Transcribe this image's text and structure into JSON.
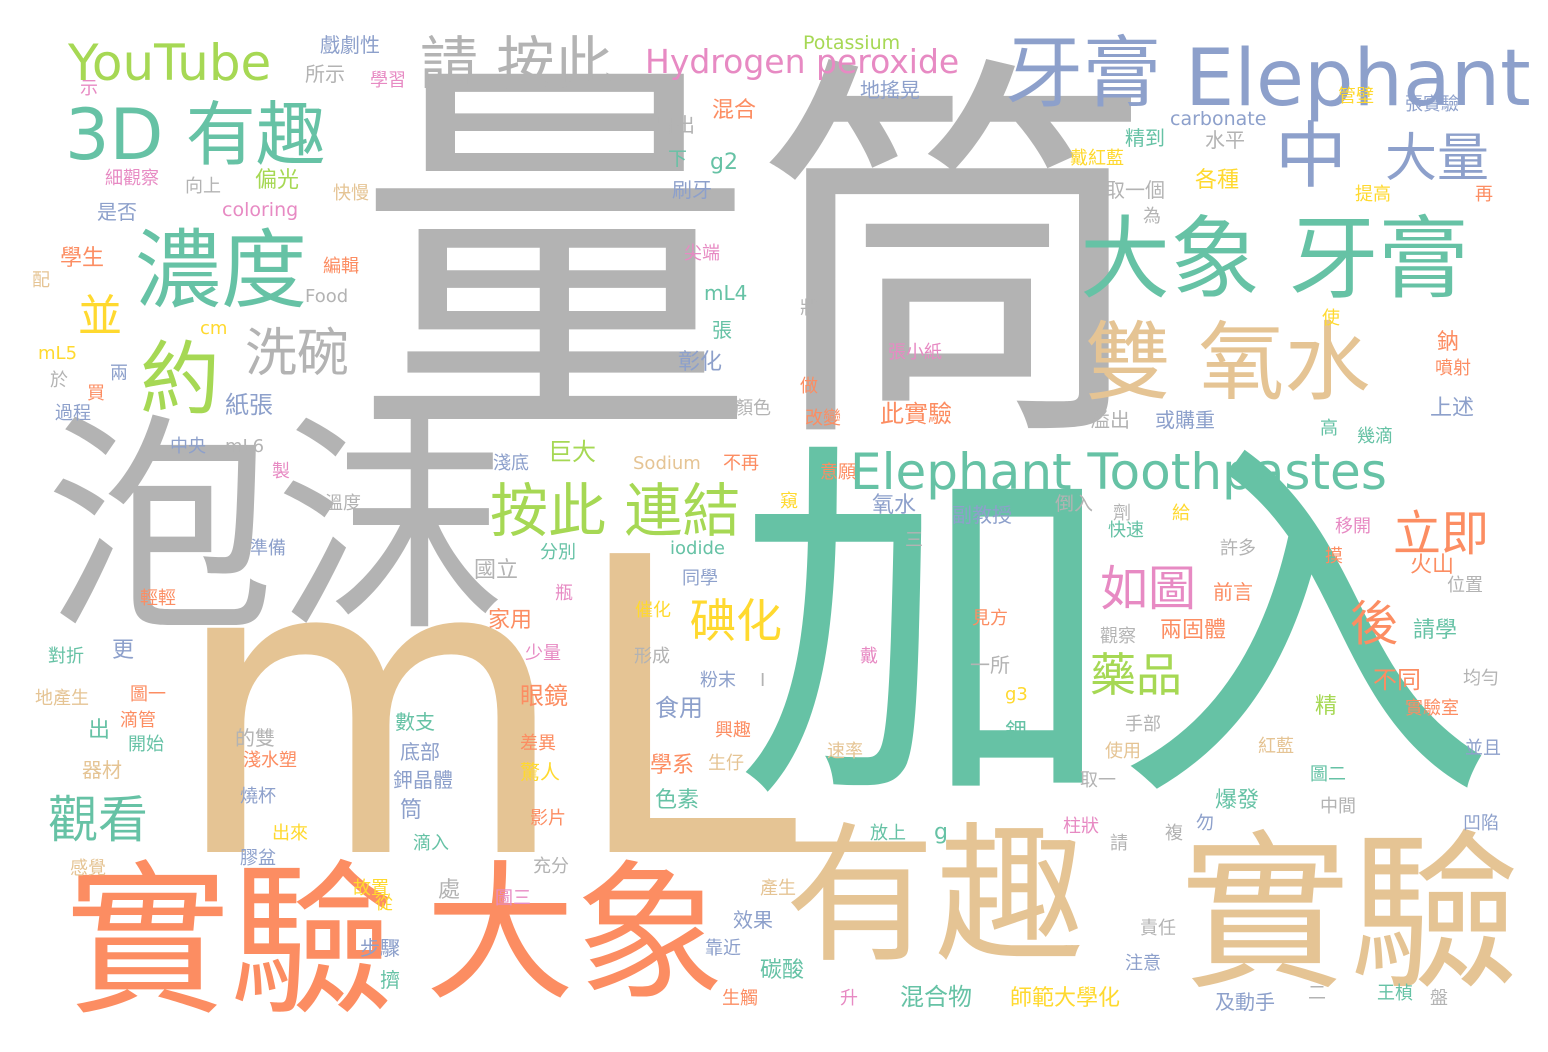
{
  "palette": {
    "teal": "#66c2a5",
    "orange": "#fc8d62",
    "blue": "#8da0cb",
    "pink": "#e78ac3",
    "green": "#a6d854",
    "yellow": "#ffd92f",
    "tan": "#e5c494",
    "gray": "#b3b3b3"
  },
  "words": {
    "liangtong": "量筒",
    "jiaru": "加入",
    "ml": "mL",
    "paomo": "泡沫",
    "shiyan_tan": "實驗",
    "shiyan_orange": "實驗",
    "youqu_tan": "有趣",
    "daxiang_orange": "大象",
    "elephant": "Elephant",
    "yagao1": "牙膏",
    "daxiang_yagao": "大象 牙膏",
    "shuangyangshui": "雙 氧水",
    "nongdu": "濃度",
    "youqu_3d": "3D 有趣",
    "youtube": "YouTube",
    "qing_anci": "請 按此",
    "hydrogen": "Hydrogen peroxide",
    "zhong": "中",
    "daliang": "大量",
    "yue": "約",
    "bing": "並",
    "xiwan": "洗碗",
    "elephant_tooth": "Elephant Toothpastes",
    "anci_lianjie": "按此 連結",
    "liji": "立即",
    "ruitu": "如圖",
    "hou": "後",
    "dianhua": "碘化",
    "yaopin": "藥品",
    "guankan": "觀看",
    "potassium": "Potassium",
    "carbonate": "carbonate",
    "xiju": "戲劇性",
    "suoshi": "所示",
    "xuexi": "學習",
    "shi": "示",
    "maochu": "冒出",
    "hunhe": "混合",
    "dizhuhuang": "地搖晃",
    "guanbi": "管壁",
    "zhangshiyan": "張實驗",
    "shuiping": "水平",
    "jingdao": "精到",
    "xia": "下",
    "g2": "g2",
    "xiguancha": "細觀察",
    "xiangshang": "向上",
    "pianguang": "偏光",
    "kuaiman": "快慢",
    "shuaya": "刷牙",
    "dai_hong": "戴紅藍",
    "gezhong": "各種",
    "quyige": "取一個",
    "tigao": "提高",
    "zai": "再",
    "wei": "為",
    "shifou": "是否",
    "coloring": "coloring",
    "xuesheng": "學生",
    "bianji": "編輯",
    "jianduan": "尖端",
    "pei": "配",
    "food": "Food",
    "ml4": "mL4",
    "zhuang": "狀",
    "shi2": "使",
    "cm": "cm",
    "zhang": "張",
    "zhangxiaozhi": "張小紙",
    "na": "鈉",
    "ml5": "mL5",
    "zhanghua": "彰化",
    "penshe": "噴射",
    "yu": "於",
    "liang": "兩",
    "mai": "買",
    "zhizhang": "紙張",
    "zuo": "做",
    "guocheng": "過程",
    "yanse": "顏色",
    "cishiyan": "此實驗",
    "gaibian": "改變",
    "yiliu": "溢出",
    "huogouzhong": "或購重",
    "shangshu": "上述",
    "gao": "高",
    "jidi": "幾滴",
    "zhongyang": "中央",
    "ml6": "mL6",
    "qiandi": "淺底",
    "juda": "巨大",
    "sodium": "Sodium",
    "buzai": "不再",
    "yiyuan": "意願",
    "zhi": "製",
    "wendu": "溫度",
    "chuang": "窺",
    "yangshui": "氧水",
    "fujiaoshou": "副教授",
    "daoru": "倒入",
    "ji": "劑",
    "gei": "給",
    "kuaisu": "快速",
    "yikai": "移開",
    "zhunbei": "準備",
    "fenbie": "分別",
    "iodide": "iodide",
    "san": "三",
    "xuduo": "許多",
    "mo": "摸",
    "huoshan": "火山",
    "guoli": "國立",
    "tongxue": "同學",
    "qianyan": "前言",
    "weizhi": "位置",
    "qingqing": "輕輕",
    "ping": "瓶",
    "cuihua": "催化",
    "jianfang": "見方",
    "liangguti": "兩固體",
    "qingxue": "請學",
    "jiayong": "家用",
    "guancha": "觀察",
    "duizhe": "對折",
    "geng": "更",
    "shaoliang": "少量",
    "xingcheng": "形成",
    "dai": "戴",
    "yisuo": "一所",
    "diaochan": "地產生",
    "tuyi": "圖一",
    "chu": "出",
    "fenmo": "粉末",
    "i": "I",
    "budong": "不同",
    "junyun": "均勻",
    "yanjing": "眼鏡",
    "shiyong": "食用",
    "g3": "g3",
    "jing2": "精",
    "shiyanshi": "實驗室",
    "didiguan": "滴管",
    "kaishi": "開始",
    "dezhuang": "的雙",
    "shuzhi": "數支",
    "xingqu": "興趣",
    "jia": "鉀",
    "shoubu": "手部",
    "qicai": "器材",
    "dibu": "底部",
    "qiansuso": "淺水塑",
    "jiajing": "鉀晶體",
    "xuexi2": "學系",
    "shengzi": "生仔",
    "chayi": "差異",
    "sulv": "速率",
    "shiyong2": "使用",
    "hongla": "紅藍",
    "bingqie": "並且",
    "jingren": "驚人",
    "tuer": "圖二",
    "quyi": "取一",
    "zhongjian": "中間",
    "shaobei": "燒杯",
    "tong": "筒",
    "sesu": "色素",
    "baofa": "爆發",
    "g": "g",
    "yingpian": "影片",
    "fangshang": "放上",
    "zhuzhuang": "柱狀",
    "wu": "勿",
    "fu": "複",
    "aoxian": "凹陷",
    "ganjue": "感覺",
    "chulai": "出來",
    "diru": "滴入",
    "qing": "請",
    "jiaopen": "膠盆",
    "chongfen": "充分",
    "chu2": "處",
    "chansheng": "產生",
    "guzhi": "故置",
    "cong": "從",
    "tusan": "圖三",
    "xiaoguo": "效果",
    "zeren": "責任",
    "buzhou": "步驟",
    "kaojin": "靠近",
    "tansuan": "碳酸",
    "zhuyi": "注意",
    "hunhewu": "混合物",
    "shifan": "師範大學化",
    "ji2": "擠",
    "shengchu": "生觸",
    "sheng": "升",
    "jidongshou": "及動手",
    "er": "二",
    "wangzhen": "王楨",
    "pan": "盤"
  }
}
